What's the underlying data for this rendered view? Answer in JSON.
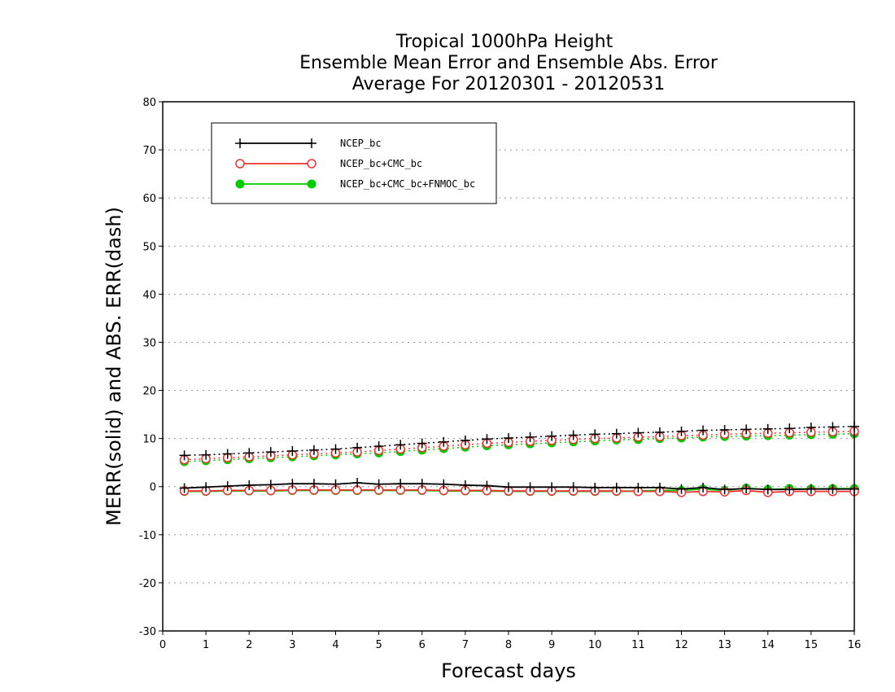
{
  "chart_data": {
    "type": "line",
    "title_lines": [
      "Tropical 1000hPa Height",
      "Ensemble Mean Error and Ensemble Abs. Error",
      "Average For 20120301 - 20120531"
    ],
    "xlabel": "Forecast days",
    "ylabel": "MERR(solid) and ABS. ERR(dash)",
    "xlim": [
      0,
      16
    ],
    "ylim": [
      -30,
      80
    ],
    "x_ticks": [
      "0",
      "1",
      "2",
      "3",
      "4",
      "5",
      "6",
      "7",
      "8",
      "9",
      "10",
      "11",
      "12",
      "13",
      "14",
      "15",
      "16"
    ],
    "y_ticks": [
      "80",
      "70",
      "60",
      "50",
      "40",
      "30",
      "20",
      "10",
      "0",
      "-10",
      "-20",
      "-30"
    ],
    "grid": "dotted horizontal",
    "legend_position": "top-left",
    "x": [
      0.5,
      1,
      1.5,
      2,
      2.5,
      3,
      3.5,
      4,
      4.5,
      5,
      5.5,
      6,
      6.5,
      7,
      7.5,
      8,
      8.5,
      9,
      9.5,
      10,
      10.5,
      11,
      11.5,
      12,
      12.5,
      13,
      13.5,
      14,
      14.5,
      15,
      15.5,
      16
    ],
    "series": [
      {
        "name": "NCEP_bc",
        "color": "#000000",
        "marker": "plus",
        "merr": [
          -0.3,
          -0.1,
          0.1,
          0.3,
          0.4,
          0.6,
          0.6,
          0.5,
          0.8,
          0.5,
          0.6,
          0.6,
          0.5,
          0.3,
          0.2,
          -0.1,
          -0.1,
          -0.1,
          -0.1,
          -0.2,
          -0.2,
          -0.2,
          -0.2,
          -0.5,
          -0.2,
          -0.6,
          -0.4,
          -0.6,
          -0.6,
          -0.5,
          -0.5,
          -0.5
        ],
        "abs_err": [
          6.5,
          6.6,
          6.8,
          7.0,
          7.2,
          7.4,
          7.6,
          7.8,
          8.1,
          8.4,
          8.7,
          9.0,
          9.3,
          9.6,
          9.9,
          10.1,
          10.3,
          10.5,
          10.7,
          10.9,
          11.0,
          11.2,
          11.3,
          11.5,
          11.7,
          11.8,
          11.9,
          12.0,
          12.1,
          12.3,
          12.4,
          12.5
        ]
      },
      {
        "name": "NCEP_bc+CMC_bc",
        "color": "#ee3333",
        "marker": "open-circle",
        "merr": [
          -0.9,
          -0.9,
          -0.8,
          -0.8,
          -0.8,
          -0.7,
          -0.7,
          -0.7,
          -0.7,
          -0.7,
          -0.7,
          -0.7,
          -0.8,
          -0.8,
          -0.8,
          -0.9,
          -0.9,
          -0.9,
          -0.9,
          -0.9,
          -0.9,
          -1.0,
          -1.0,
          -1.2,
          -1.0,
          -1.1,
          -0.8,
          -1.2,
          -1.0,
          -1.0,
          -1.0,
          -1.0
        ],
        "abs_err": [
          5.6,
          5.8,
          6.0,
          6.2,
          6.4,
          6.6,
          6.8,
          7.0,
          7.2,
          7.5,
          7.8,
          8.1,
          8.4,
          8.7,
          9.0,
          9.2,
          9.4,
          9.6,
          9.8,
          10.0,
          10.1,
          10.3,
          10.4,
          10.6,
          10.7,
          10.9,
          11.0,
          11.1,
          11.2,
          11.3,
          11.4,
          11.5
        ]
      },
      {
        "name": "NCEP_bc+CMC_bc+FNMOC_bc",
        "color": "#00cc00",
        "marker": "filled-circle",
        "merr": [
          -1.0,
          -1.0,
          -0.9,
          -0.9,
          -0.9,
          -0.8,
          -0.8,
          -0.8,
          -0.8,
          -0.8,
          -0.8,
          -0.8,
          -0.9,
          -0.9,
          -0.9,
          -1.0,
          -1.0,
          -1.0,
          -1.0,
          -1.0,
          -1.0,
          -0.9,
          -0.8,
          -0.8,
          -0.5,
          -0.8,
          -0.3,
          -0.6,
          -0.4,
          -0.5,
          -0.4,
          -0.4
        ],
        "abs_err": [
          5.2,
          5.4,
          5.6,
          5.8,
          6.0,
          6.2,
          6.4,
          6.6,
          6.8,
          7.0,
          7.3,
          7.6,
          7.9,
          8.2,
          8.5,
          8.7,
          8.9,
          9.1,
          9.3,
          9.5,
          9.7,
          9.8,
          10.0,
          10.1,
          10.3,
          10.4,
          10.5,
          10.6,
          10.7,
          10.8,
          10.9,
          11.0
        ]
      }
    ]
  }
}
